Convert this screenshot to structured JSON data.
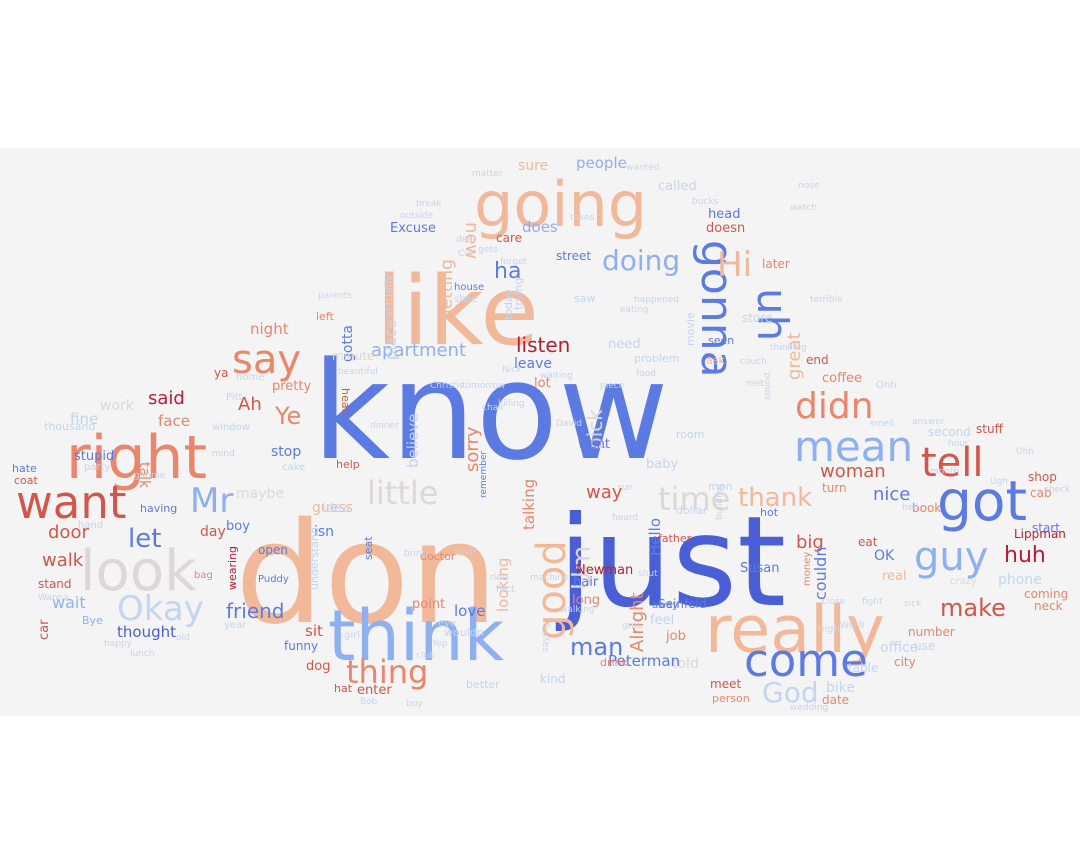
{
  "colors": {
    "page_background": "#ffffff",
    "panel_background": "#f4f4f4",
    "dark_blue": "#4a5fd6",
    "blue": "#5b7be3",
    "light_blue": "#8fb0f0",
    "pale_blue": "#c3d5f2",
    "pale_grey": "#ddd8d5",
    "peach": "#f2b89a",
    "salmon": "#e9866b",
    "red": "#d2574a",
    "dark_red": "#b81e32"
  },
  "words": [
    {
      "text": "know",
      "color": "blue"
    },
    {
      "text": "don",
      "color": "peach"
    },
    {
      "text": "just",
      "color": "dark_blue"
    },
    {
      "text": "like",
      "color": "peach"
    },
    {
      "text": "think",
      "color": "light_blue"
    },
    {
      "text": "really",
      "color": "peach"
    },
    {
      "text": "going",
      "color": "peach"
    },
    {
      "text": "right",
      "color": "salmon"
    },
    {
      "text": "look",
      "color": "pale_grey"
    },
    {
      "text": "want",
      "color": "red"
    },
    {
      "text": "got",
      "color": "blue"
    },
    {
      "text": "mean",
      "color": "light_blue"
    },
    {
      "text": "come",
      "color": "blue"
    },
    {
      "text": "guy",
      "color": "light_blue"
    },
    {
      "text": "tell",
      "color": "red"
    },
    {
      "text": "gonna",
      "color": "blue"
    },
    {
      "text": "uh",
      "color": "blue"
    },
    {
      "text": "good",
      "color": "peach"
    },
    {
      "text": "say",
      "color": "salmon"
    },
    {
      "text": "didn",
      "color": "salmon"
    },
    {
      "text": "Okay",
      "color": "pale_blue"
    },
    {
      "text": "Mr",
      "color": "light_blue"
    },
    {
      "text": "Hi",
      "color": "peach"
    },
    {
      "text": "little",
      "color": "pale_grey"
    },
    {
      "text": "time",
      "color": "pale_grey"
    },
    {
      "text": "thing",
      "color": "salmon"
    },
    {
      "text": "doing",
      "color": "light_blue"
    },
    {
      "text": "God",
      "color": "pale_blue"
    },
    {
      "text": "thank",
      "color": "peach"
    },
    {
      "text": "Um",
      "color": "pale_grey"
    },
    {
      "text": "make",
      "color": "red"
    },
    {
      "text": "let",
      "color": "blue"
    },
    {
      "text": "man",
      "color": "blue"
    },
    {
      "text": "huh",
      "color": "dark_red"
    },
    {
      "text": "nice",
      "color": "blue"
    },
    {
      "text": "woman",
      "color": "red"
    },
    {
      "text": "Ye",
      "color": "salmon"
    },
    {
      "text": "listen",
      "color": "dark_red"
    },
    {
      "text": "apartment",
      "color": "light_blue"
    },
    {
      "text": "friend",
      "color": "blue"
    },
    {
      "text": "ha",
      "color": "blue"
    },
    {
      "text": "door",
      "color": "red"
    },
    {
      "text": "walk",
      "color": "red"
    },
    {
      "text": "sorry",
      "color": "salmon"
    },
    {
      "text": "way",
      "color": "red"
    },
    {
      "text": "big",
      "color": "red"
    },
    {
      "text": "Ah",
      "color": "red"
    },
    {
      "text": "said",
      "color": "dark_red"
    },
    {
      "text": "Alright",
      "color": "salmon"
    },
    {
      "text": "getting",
      "color": "peach"
    },
    {
      "text": "new",
      "color": "peach"
    },
    {
      "text": "great",
      "color": "peach"
    },
    {
      "text": "pick",
      "color": "pale_grey"
    },
    {
      "text": "couldn",
      "color": "blue"
    },
    {
      "text": "wait",
      "color": "light_blue"
    },
    {
      "text": "thought",
      "color": "dark_blue"
    },
    {
      "text": "Hello",
      "color": "blue"
    },
    {
      "text": "fine",
      "color": "pale_blue"
    },
    {
      "text": "face",
      "color": "salmon"
    },
    {
      "text": "talk",
      "color": "salmon"
    },
    {
      "text": "night",
      "color": "salmon"
    },
    {
      "text": "people",
      "color": "light_blue"
    },
    {
      "text": "does",
      "color": "light_blue"
    },
    {
      "text": "talking",
      "color": "salmon"
    },
    {
      "text": "looking",
      "color": "peach"
    },
    {
      "text": "believe",
      "color": "pale_blue"
    },
    {
      "text": "day",
      "color": "red"
    },
    {
      "text": "sit",
      "color": "red"
    },
    {
      "text": "stop",
      "color": "blue"
    },
    {
      "text": "bike",
      "color": "pale_blue"
    },
    {
      "text": "work",
      "color": "pale_grey"
    },
    {
      "text": "maybe",
      "color": "pale_grey"
    },
    {
      "text": "isn",
      "color": "blue"
    },
    {
      "text": "guess",
      "color": "peach"
    },
    {
      "text": "idea",
      "color": "pale_blue"
    },
    {
      "text": "love",
      "color": "blue"
    },
    {
      "text": "told",
      "color": "pale_grey"
    },
    {
      "text": "OK",
      "color": "blue"
    },
    {
      "text": "phone",
      "color": "pale_blue"
    },
    {
      "text": "office",
      "color": "pale_blue"
    },
    {
      "text": "coffee",
      "color": "salmon"
    },
    {
      "text": "real",
      "color": "peach"
    },
    {
      "text": "place",
      "color": "pale_blue"
    },
    {
      "text": "gotta",
      "color": "blue"
    },
    {
      "text": "sure",
      "color": "peach"
    },
    {
      "text": "doesn",
      "color": "red"
    },
    {
      "text": "head",
      "color": "blue"
    },
    {
      "text": "called",
      "color": "pale_blue"
    },
    {
      "text": "Susan",
      "color": "blue"
    },
    {
      "text": "Peterman",
      "color": "blue"
    },
    {
      "text": "Newman",
      "color": "dark_red"
    },
    {
      "text": "Lippman",
      "color": "dark_red"
    },
    {
      "text": "Seinfeld",
      "color": "blue"
    },
    {
      "text": "leave",
      "color": "blue"
    },
    {
      "text": "need",
      "color": "pale_blue"
    },
    {
      "text": "lot",
      "color": "salmon"
    },
    {
      "text": "went",
      "color": "blue"
    },
    {
      "text": "baby",
      "color": "pale_blue"
    },
    {
      "text": "job",
      "color": "salmon"
    },
    {
      "text": "feel",
      "color": "pale_blue"
    },
    {
      "text": "long",
      "color": "salmon"
    },
    {
      "text": "point",
      "color": "salmon"
    },
    {
      "text": "hair",
      "color": "blue"
    },
    {
      "text": "car",
      "color": "red"
    },
    {
      "text": "stupid",
      "color": "blue"
    },
    {
      "text": "boy",
      "color": "blue"
    },
    {
      "text": "pretty",
      "color": "salmon"
    },
    {
      "text": "Excuse",
      "color": "blue"
    },
    {
      "text": "care",
      "color": "red"
    },
    {
      "text": "street",
      "color": "blue"
    },
    {
      "text": "dog",
      "color": "red"
    },
    {
      "text": "enter",
      "color": "red"
    },
    {
      "text": "funny",
      "color": "blue"
    },
    {
      "text": "hat",
      "color": "red"
    },
    {
      "text": "open",
      "color": "blue"
    },
    {
      "text": "stand",
      "color": "red"
    },
    {
      "text": "number",
      "color": "salmon"
    },
    {
      "text": "neck",
      "color": "salmon"
    },
    {
      "text": "coming",
      "color": "salmon"
    },
    {
      "text": "start",
      "color": "blue"
    },
    {
      "text": "shop",
      "color": "red"
    },
    {
      "text": "cab",
      "color": "salmon"
    },
    {
      "text": "book",
      "color": "salmon"
    },
    {
      "text": "second",
      "color": "pale_blue"
    },
    {
      "text": "stuff",
      "color": "red"
    },
    {
      "text": "store",
      "color": "pale_blue"
    },
    {
      "text": "later",
      "color": "salmon"
    },
    {
      "text": "end",
      "color": "red"
    },
    {
      "text": "turn",
      "color": "salmon"
    },
    {
      "text": "date",
      "color": "salmon"
    },
    {
      "text": "meet",
      "color": "red"
    },
    {
      "text": "person",
      "color": "salmon"
    },
    {
      "text": "city",
      "color": "salmon"
    },
    {
      "text": "use",
      "color": "pale_blue"
    },
    {
      "text": "table",
      "color": "pale_blue"
    },
    {
      "text": "kind",
      "color": "pale_blue"
    },
    {
      "text": "eat",
      "color": "red"
    },
    {
      "text": "hot",
      "color": "blue"
    },
    {
      "text": "dollar",
      "color": "pale_blue"
    },
    {
      "text": "father",
      "color": "red"
    },
    {
      "text": "movie",
      "color": "pale_blue"
    },
    {
      "text": "problem",
      "color": "pale_blue"
    },
    {
      "text": "seen",
      "color": "blue"
    },
    {
      "text": "room",
      "color": "pale_blue"
    },
    {
      "text": "ask",
      "color": "peach"
    },
    {
      "text": "hear",
      "color": "red"
    },
    {
      "text": "ya",
      "color": "red"
    },
    {
      "text": "Bye",
      "color": "light_blue"
    },
    {
      "text": "hate",
      "color": "blue"
    },
    {
      "text": "coat",
      "color": "red"
    },
    {
      "text": "thousand",
      "color": "pale_blue"
    },
    {
      "text": "having",
      "color": "blue"
    },
    {
      "text": "help",
      "color": "red"
    },
    {
      "text": "remember",
      "color": "blue"
    },
    {
      "text": "seat",
      "color": "blue"
    },
    {
      "text": "understand",
      "color": "pale_blue"
    },
    {
      "text": "doctor",
      "color": "salmon"
    },
    {
      "text": "wouldn",
      "color": "pale_blue"
    },
    {
      "text": "better",
      "color": "pale_blue"
    },
    {
      "text": "drink",
      "color": "salmon"
    },
    {
      "text": "today",
      "color": "pale_blue"
    },
    {
      "text": "actually",
      "color": "pale_blue"
    },
    {
      "text": "mon",
      "color": "pale_blue"
    },
    {
      "text": "minute",
      "color": "pale_grey"
    },
    {
      "text": "house",
      "color": "blue"
    },
    {
      "text": "shoe",
      "color": "pale_blue"
    },
    {
      "text": "saw",
      "color": "pale_blue"
    },
    {
      "text": "trying",
      "color": "pale_blue"
    },
    {
      "text": "left",
      "color": "salmon"
    },
    {
      "text": "home",
      "color": "pale_blue"
    },
    {
      "text": "Pitt",
      "color": "pale_blue"
    },
    {
      "text": "window",
      "color": "pale_blue"
    },
    {
      "text": "year",
      "color": "pale_blue"
    },
    {
      "text": "wearing",
      "color": "dark_red"
    },
    {
      "text": "Puddy",
      "color": "blue"
    },
    {
      "text": "fact",
      "color": "pale_blue"
    },
    {
      "text": "eye",
      "color": "pale_blue"
    },
    {
      "text": "girl",
      "color": "pale_blue"
    },
    {
      "text": "cake",
      "color": "pale_blue"
    },
    {
      "text": "bag",
      "color": "salmon"
    },
    {
      "text": "hand",
      "color": "pale_blue"
    },
    {
      "text": "party",
      "color": "pale_blue"
    },
    {
      "text": "money",
      "color": "salmon"
    },
    {
      "text": "crazy",
      "color": "pale_grey"
    },
    {
      "text": "high",
      "color": "pale_blue"
    },
    {
      "text": "Ohh",
      "color": "pale_blue"
    },
    {
      "text": "lunch",
      "color": "pale_blue"
    },
    {
      "text": "Bob",
      "color": "pale_blue"
    },
    {
      "text": "club",
      "color": "pale_blue"
    },
    {
      "text": "buy",
      "color": "pale_blue"
    },
    {
      "text": "Christie",
      "color": "pale_blue"
    },
    {
      "text": "tomorrow",
      "color": "pale_blue"
    },
    {
      "text": "forget",
      "color": "pale_blue"
    },
    {
      "text": "saying",
      "color": "pale_blue"
    },
    {
      "text": "shut",
      "color": "pale_blue"
    },
    {
      "text": "sound",
      "color": "pale_blue"
    },
    {
      "text": "couch",
      "color": "pale_blue"
    },
    {
      "text": "food",
      "color": "pale_blue"
    },
    {
      "text": "killing",
      "color": "pale_blue"
    },
    {
      "text": "wanted",
      "color": "pale_blue"
    },
    {
      "text": "bucks",
      "color": "pale_blue"
    },
    {
      "text": "deal",
      "color": "pale_blue"
    },
    {
      "text": "gets",
      "color": "pale_blue"
    },
    {
      "text": "Cut",
      "color": "pale_blue"
    },
    {
      "text": "takes",
      "color": "pale_blue"
    },
    {
      "text": "break",
      "color": "pale_blue"
    },
    {
      "text": "matter",
      "color": "pale_blue"
    },
    {
      "text": "outside",
      "color": "pale_blue"
    },
    {
      "text": "eating",
      "color": "pale_blue"
    },
    {
      "text": "Uhh",
      "color": "pale_blue"
    },
    {
      "text": "Ugh",
      "color": "pale_blue"
    },
    {
      "text": "check",
      "color": "pale_blue"
    },
    {
      "text": "heard",
      "color": "pale_blue"
    },
    {
      "text": "away",
      "color": "blue"
    },
    {
      "text": "met",
      "color": "pale_blue"
    },
    {
      "text": "hell",
      "color": "pale_blue"
    },
    {
      "text": "run",
      "color": "pale_blue"
    },
    {
      "text": "walking",
      "color": "pale_blue"
    },
    {
      "text": "waiting",
      "color": "pale_blue"
    },
    {
      "text": "bring",
      "color": "pale_blue"
    },
    {
      "text": "soup",
      "color": "pale_blue"
    },
    {
      "text": "grab",
      "color": "pale_blue"
    },
    {
      "text": "dinner",
      "color": "pale_blue"
    },
    {
      "text": "gimme",
      "color": "pale_blue"
    },
    {
      "text": "Wanna",
      "color": "pale_blue"
    },
    {
      "text": "mind",
      "color": "pale_blue"
    },
    {
      "text": "Yep",
      "color": "pale_blue"
    },
    {
      "text": "Nick",
      "color": "pale_blue"
    },
    {
      "text": "machine",
      "color": "pale_blue"
    },
    {
      "text": "piece",
      "color": "pale_blue"
    },
    {
      "text": "beautiful",
      "color": "pale_blue"
    },
    {
      "text": "ride",
      "color": "pale_blue"
    },
    {
      "text": "building",
      "color": "pale_blue"
    },
    {
      "text": "happened",
      "color": "pale_blue"
    },
    {
      "text": "chair",
      "color": "pale_blue"
    },
    {
      "text": "month",
      "color": "pale_blue"
    },
    {
      "text": "parents",
      "color": "pale_blue"
    },
    {
      "text": "answer",
      "color": "pale_blue"
    },
    {
      "text": "smell",
      "color": "pale_blue"
    },
    {
      "text": "terrible",
      "color": "pale_blue"
    },
    {
      "text": "thinking",
      "color": "pale_blue"
    },
    {
      "text": "nose",
      "color": "pale_blue"
    },
    {
      "text": "watch",
      "color": "pale_blue"
    },
    {
      "text": "happy",
      "color": "pale_blue"
    },
    {
      "text": "wedding",
      "color": "pale_blue"
    },
    {
      "text": "fight",
      "color": "pale_blue"
    },
    {
      "text": "sick",
      "color": "pale_blue"
    },
    {
      "text": "close",
      "color": "pale_blue"
    },
    {
      "text": "old",
      "color": "pale_blue"
    },
    {
      "text": "David",
      "color": "pale_blue"
    },
    {
      "text": "WOW",
      "color": "pale_blue"
    },
    {
      "text": "hour",
      "color": "pale_blue"
    },
    {
      "text": "ahead",
      "color": "pale_blue"
    },
    {
      "text": "Jerry",
      "color": "pale_blue"
    }
  ]
}
